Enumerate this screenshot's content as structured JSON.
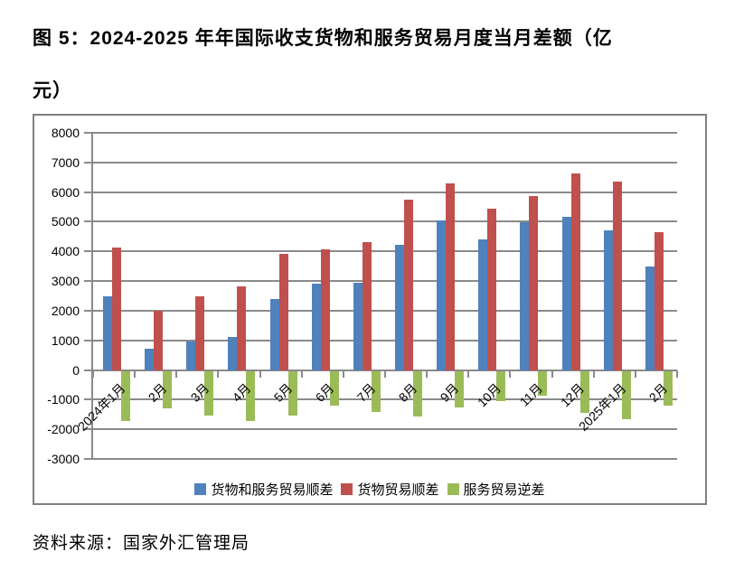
{
  "title": {
    "line1": "图 5：2024-2025 年年国际收支货物和服务贸易月度当月差额（亿",
    "line2": "元）"
  },
  "source_note": "资料来源：国家外汇管理局",
  "colors": {
    "series_blue": "#4F81BD",
    "series_red": "#C0504D",
    "series_green": "#9BBB59",
    "grid": "#8a8a8a",
    "frame_border": "#7f7f7f"
  },
  "chart_data": {
    "type": "bar",
    "title": "2024-2025 年年国际收支货物和服务贸易月度当月差额（亿元）",
    "categories": [
      "2024年1月",
      "2月",
      "3月",
      "4月",
      "5月",
      "6月",
      "7月",
      "8月",
      "9月",
      "10月",
      "11月",
      "12月",
      "2025年1月",
      "2月"
    ],
    "series": [
      {
        "name": "货物和服务贸易顺差",
        "key": "goods-and-services-surplus",
        "color": "#4F81BD",
        "values": [
          2470,
          720,
          970,
          1120,
          2390,
          2900,
          2940,
          4210,
          5040,
          4390,
          4970,
          5180,
          4700,
          3480
        ]
      },
      {
        "name": "货物贸易顺差",
        "key": "goods-surplus",
        "color": "#C0504D",
        "values": [
          4130,
          2000,
          2500,
          2820,
          3930,
          4060,
          4310,
          5760,
          6300,
          5430,
          5860,
          6640,
          6360,
          4660
        ]
      },
      {
        "name": "服务贸易逆差",
        "key": "services-deficit",
        "color": "#9BBB59",
        "values": [
          -1690,
          -1250,
          -1500,
          -1690,
          -1500,
          -1170,
          -1380,
          -1540,
          -1230,
          -1030,
          -840,
          -1420,
          -1640,
          -1180
        ]
      }
    ],
    "ylim": [
      -3000,
      8000
    ],
    "ytick_step": 1000,
    "ytick_labels": [
      "8000",
      "7000",
      "6000",
      "5000",
      "4000",
      "3000",
      "2000",
      "1000",
      "0",
      "-1000",
      "-2000",
      "-3000"
    ],
    "grid": true,
    "legend_position": "bottom",
    "xlabel": "",
    "ylabel": ""
  }
}
